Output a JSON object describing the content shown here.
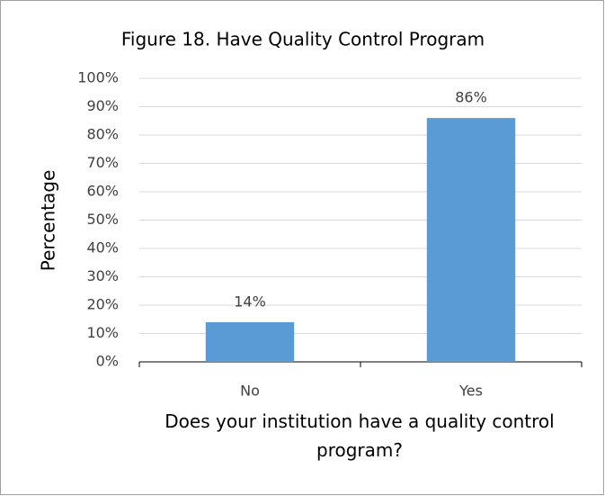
{
  "chart_data": {
    "type": "bar",
    "title": "Figure 18. Have Quality Control Program",
    "categories": [
      "No",
      "Yes"
    ],
    "values": [
      14,
      86
    ],
    "value_labels": [
      "14%",
      "86%"
    ],
    "color": "#5b9bd5",
    "y_label": "Percentage",
    "x_label": "Does your institution have a quality control program?",
    "ylim": [
      0,
      100
    ],
    "yticks": [
      {
        "value": 0,
        "label": "0%"
      },
      {
        "value": 10,
        "label": "10%"
      },
      {
        "value": 20,
        "label": "20%"
      },
      {
        "value": 30,
        "label": "30%"
      },
      {
        "value": 40,
        "label": "40%"
      },
      {
        "value": 50,
        "label": "50%"
      },
      {
        "value": 60,
        "label": "60%"
      },
      {
        "value": 70,
        "label": "70%"
      },
      {
        "value": 80,
        "label": "80%"
      },
      {
        "value": 90,
        "label": "90%"
      },
      {
        "value": 100,
        "label": "100%"
      }
    ],
    "grid": true
  }
}
